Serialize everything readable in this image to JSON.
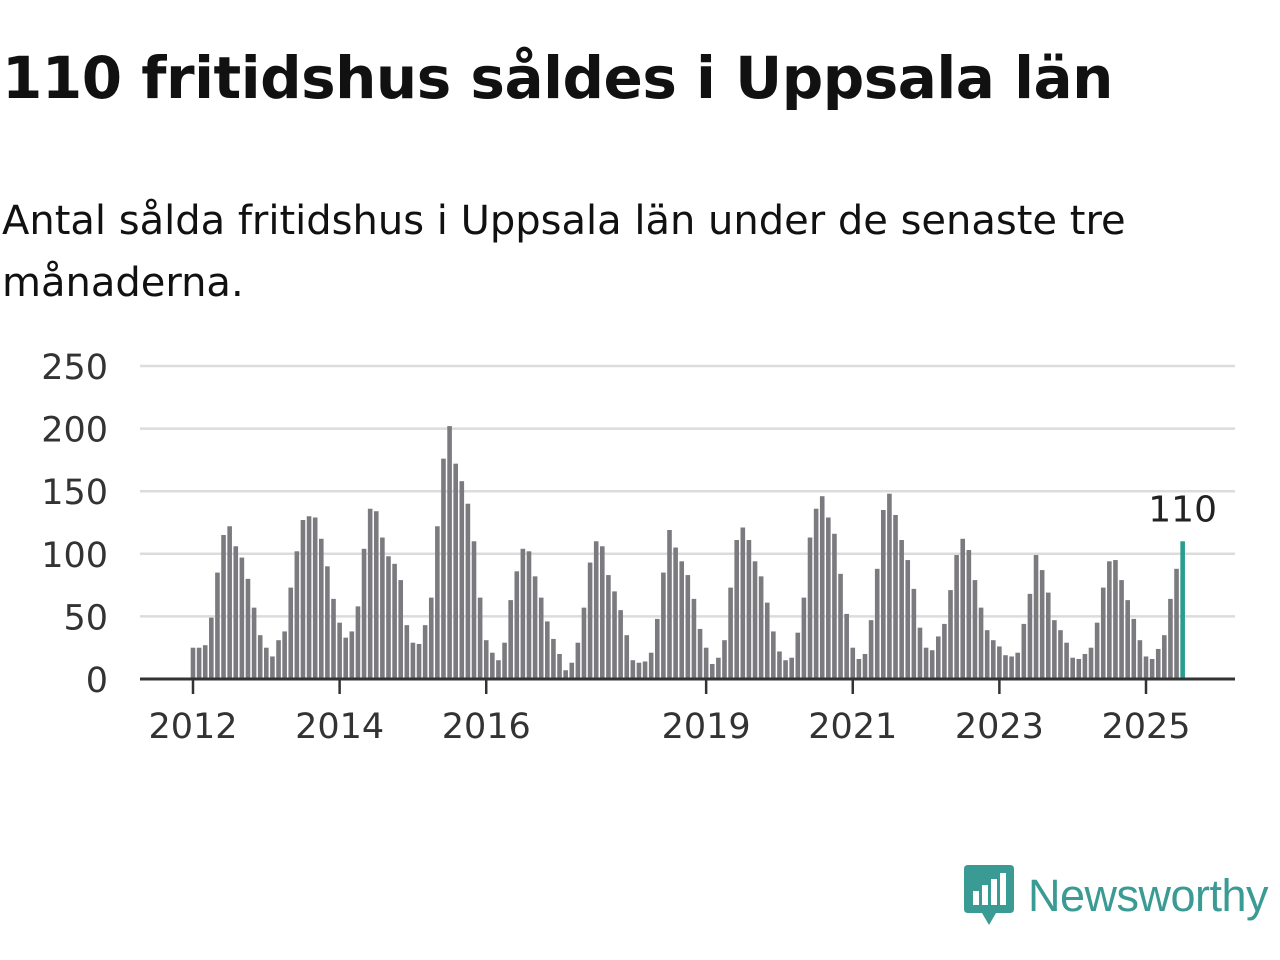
{
  "title": "110 fritidshus såldes i Uppsala län",
  "subtitle": "Antal sålda fritidshus i Uppsala län under de senaste tre månaderna.",
  "brand": {
    "name": "Newsworthy",
    "color": "#3a9a94",
    "icon": "newsworthy-chart-icon"
  },
  "chart_data": {
    "type": "bar",
    "yticks": [
      0,
      50,
      100,
      150,
      200,
      250
    ],
    "ylim": [
      0,
      250
    ],
    "xticks": [
      {
        "label": "2012",
        "index": 0
      },
      {
        "label": "2014",
        "index": 24
      },
      {
        "label": "2016",
        "index": 48
      },
      {
        "label": "2019",
        "index": 84
      },
      {
        "label": "2021",
        "index": 108
      },
      {
        "label": "2023",
        "index": 132
      },
      {
        "label": "2025",
        "index": 156
      }
    ],
    "start": "2012-01",
    "bar_color": "#7b7a7f",
    "highlight_color": "#2a9d8f",
    "highlight_label": "110",
    "grid": true,
    "values": [
      25,
      25,
      27,
      49,
      85,
      115,
      122,
      106,
      97,
      80,
      57,
      35,
      25,
      18,
      31,
      38,
      73,
      102,
      127,
      130,
      129,
      112,
      90,
      64,
      45,
      33,
      38,
      58,
      104,
      136,
      134,
      113,
      98,
      92,
      79,
      43,
      29,
      28,
      43,
      65,
      122,
      176,
      202,
      172,
      158,
      140,
      110,
      65,
      31,
      21,
      15,
      29,
      63,
      86,
      104,
      102,
      82,
      65,
      46,
      32,
      20,
      7,
      13,
      29,
      57,
      93,
      110,
      106,
      83,
      70,
      55,
      35,
      15,
      13,
      14,
      21,
      48,
      85,
      119,
      105,
      94,
      83,
      64,
      40,
      25,
      12,
      17,
      31,
      73,
      111,
      121,
      111,
      94,
      82,
      61,
      38,
      22,
      15,
      17,
      37,
      65,
      113,
      136,
      146,
      129,
      116,
      84,
      52,
      25,
      16,
      20,
      47,
      88,
      135,
      148,
      131,
      111,
      95,
      72,
      41,
      25,
      23,
      34,
      44,
      71,
      99,
      112,
      103,
      79,
      57,
      39,
      31,
      26,
      19,
      18,
      21,
      44,
      68,
      99,
      87,
      69,
      47,
      39,
      29,
      17,
      16,
      20,
      25,
      45,
      73,
      94,
      95,
      79,
      63,
      48,
      31,
      18,
      16,
      24,
      35,
      64,
      88,
      110
    ]
  }
}
